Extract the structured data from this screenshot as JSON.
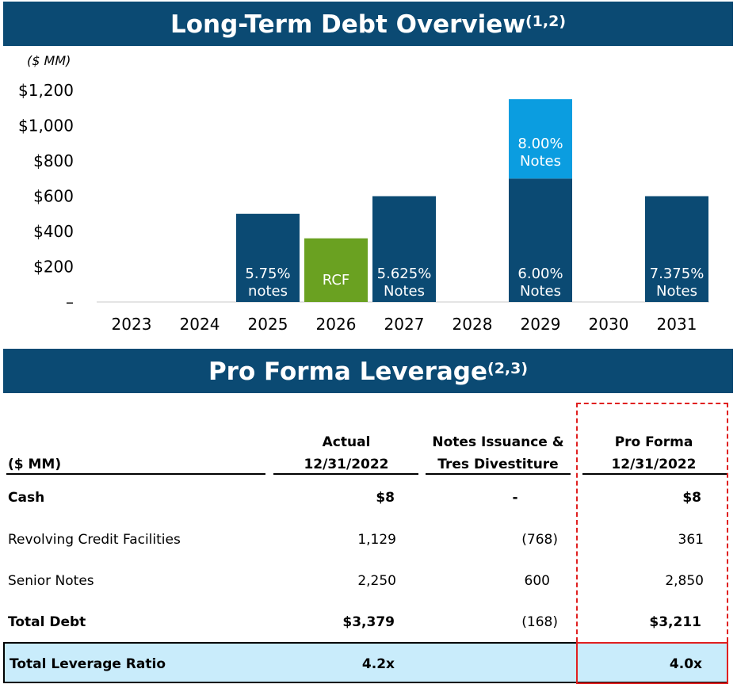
{
  "header1": {
    "title": "Long-Term Debt Overview",
    "footnote": "(1,2)"
  },
  "header2": {
    "title": "Pro Forma Leverage",
    "footnote": "(2,3)"
  },
  "chart_data": {
    "type": "bar",
    "unit_label": "($ MM)",
    "categories": [
      "2023",
      "2024",
      "2025",
      "2026",
      "2027",
      "2028",
      "2029",
      "2030",
      "2031"
    ],
    "ylim": [
      0,
      1200
    ],
    "yticks": [
      0,
      200,
      400,
      600,
      800,
      1000,
      1200
    ],
    "ytick_labels": [
      "–",
      "$200",
      "$400",
      "$600",
      "$800",
      "$1,000",
      "$1,200"
    ],
    "grid": false,
    "colors": {
      "notes": "#0b4a73",
      "rcf": "#6aa121",
      "notes_2029_top": "#0b9de0"
    },
    "bars": [
      {
        "category": "2025",
        "base": 0,
        "value": 500,
        "label_line1": "5.75%",
        "label_line2": "notes",
        "color": "#0b4a73"
      },
      {
        "category": "2026",
        "base": 0,
        "value": 361,
        "label_line1": "RCF",
        "label_line2": "",
        "color": "#6aa121"
      },
      {
        "category": "2027",
        "base": 0,
        "value": 600,
        "label_line1": "5.625%",
        "label_line2": "Notes",
        "color": "#0b4a73"
      },
      {
        "category": "2029",
        "base": 0,
        "value": 700,
        "label_line1": "6.00%",
        "label_line2": "Notes",
        "color": "#0b4a73"
      },
      {
        "category": "2029",
        "base": 700,
        "value": 450,
        "label_line1": "8.00%",
        "label_line2": "Notes",
        "color": "#0b9de0"
      },
      {
        "category": "2031",
        "base": 0,
        "value": 600,
        "label_line1": "7.375%",
        "label_line2": "Notes",
        "color": "#0b4a73"
      }
    ]
  },
  "table": {
    "unit_header": "($ MM)",
    "col_actual_line1": "Actual",
    "col_actual_line2": "12/31/2022",
    "col_notes_line1": "Notes Issuance &",
    "col_notes_line2": "Tres Divestiture",
    "col_proforma_line1": "Pro Forma",
    "col_proforma_line2": "12/31/2022",
    "rows": [
      {
        "label": "Cash",
        "actual": "$8",
        "adjust": "-",
        "proforma": "$8"
      },
      {
        "label": "Revolving Credit Facilities",
        "actual": "1,129",
        "adjust": "(768)",
        "proforma": "361"
      },
      {
        "label": "Senior Notes",
        "actual": "2,250",
        "adjust": "600",
        "proforma": "2,850"
      },
      {
        "label": "Total Debt",
        "actual": "$3,379",
        "adjust": "(168)",
        "proforma": "$3,211"
      }
    ],
    "leverage": {
      "label": "Total Leverage Ratio",
      "actual": "4.2x",
      "proforma": "4.0x"
    }
  }
}
